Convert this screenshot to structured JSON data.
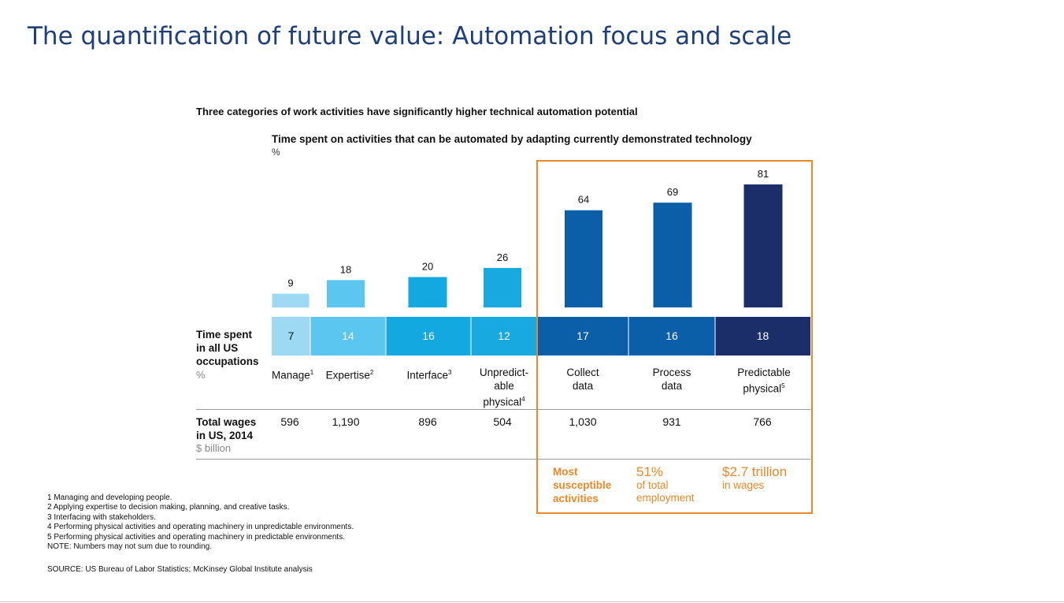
{
  "slide_title": "The quantification of future value: Automation focus and scale",
  "headline": "Three categories of work activities have significantly higher technical automation potential",
  "colors": {
    "manage": "#9ed9f3",
    "expertise": "#5bc7f0",
    "interface": "#13a8e0",
    "unpredictable": "#19a9e1",
    "collect": "#0b5ea8",
    "process": "#0b5ea8",
    "predictable": "#1c2e6a",
    "highlight": "#e8882a"
  },
  "chart_data": {
    "type": "bar",
    "title": "Time spent on activities that can be automated by adapting currently demonstrated technology",
    "unit": "%",
    "categories": [
      "Manage",
      "Expertise",
      "Interface",
      "Unpredictable physical",
      "Collect data",
      "Process data",
      "Predictable physical"
    ],
    "values": [
      9,
      18,
      20,
      26,
      64,
      69,
      81
    ],
    "value_labels": [
      "9",
      "18",
      "20",
      "26",
      "64",
      "69",
      "81"
    ],
    "ylim": [
      0,
      100
    ],
    "grid": false,
    "occupation_share": {
      "label_lines": [
        "Time spent",
        "in all US",
        "occupations"
      ],
      "unit": "%",
      "values": [
        "7",
        "14",
        "16",
        "12",
        "17",
        "16",
        "18"
      ]
    },
    "wages": {
      "label_lines": [
        "Total wages",
        "in US, 2014"
      ],
      "unit": "$ billion",
      "values": [
        "596",
        "1,190",
        "896",
        "504",
        "1,030",
        "931",
        "766"
      ]
    }
  },
  "category_labels": [
    {
      "lines": [
        "Manage"
      ],
      "sup": "1"
    },
    {
      "lines": [
        "Expertise"
      ],
      "sup": "2"
    },
    {
      "lines": [
        "Interface"
      ],
      "sup": "3"
    },
    {
      "lines": [
        "Unpredict-",
        "able",
        "physical"
      ],
      "sup": "4"
    },
    {
      "lines": [
        "Collect",
        "data"
      ],
      "sup": ""
    },
    {
      "lines": [
        "Process",
        "data"
      ],
      "sup": ""
    },
    {
      "lines": [
        "Predictable",
        "physical"
      ],
      "sup": "5"
    }
  ],
  "highlight": {
    "label_lines": [
      "Most",
      "susceptible",
      "activities"
    ],
    "employment_big": "51%",
    "employment_small_lines": [
      "of total",
      "employment"
    ],
    "wages_big": "$2.7 trillion",
    "wages_small": "in wages"
  },
  "footnotes": [
    "1   Managing and developing people.",
    "2   Applying expertise to decision making, planning, and creative tasks.",
    "3   Interfacing with stakeholders.",
    "4   Performing physical activities and operating machinery in unpredictable environments.",
    "5   Performing physical activities and operating machinery in predictable environments.",
    "NOTE: Numbers may not sum due to rounding."
  ],
  "source": "SOURCE:  US Bureau of Labor Statistics; McKinsey Global Institute analysis"
}
